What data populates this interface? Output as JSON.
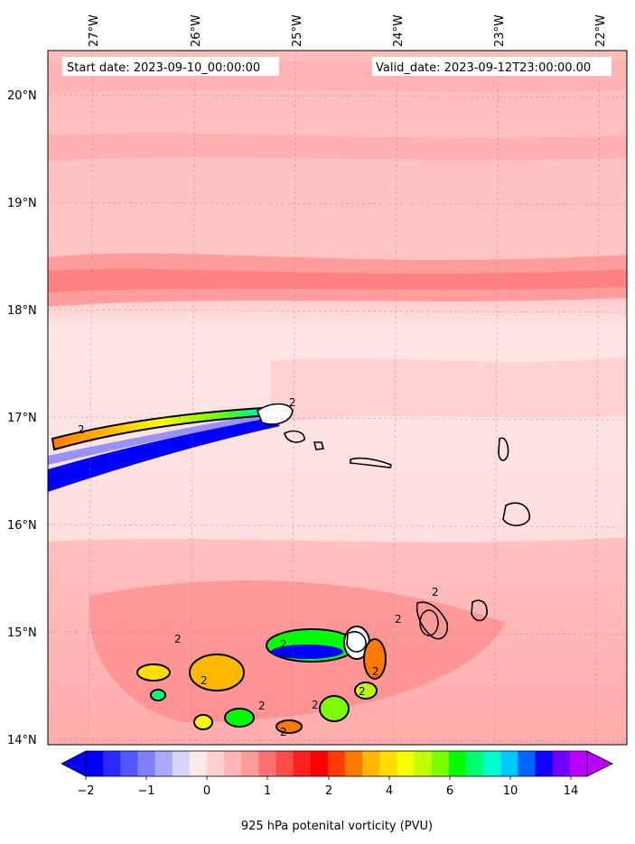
{
  "header": {
    "start_date": "Start date: 2023-09-10_00:00:00",
    "valid_date": "Valid_date: 2023-09-12T23:00:00.00"
  },
  "axes": {
    "lon_ticks": [
      "27°W",
      "26°W",
      "25°W",
      "24°W",
      "23°W",
      "22°W"
    ],
    "lat_ticks": [
      "20°N",
      "19°N",
      "18°N",
      "17°N",
      "16°N",
      "15°N",
      "14°N"
    ]
  },
  "colorbar": {
    "label": "925 hPa potenital vorticity (PVU)",
    "tick_labels": [
      "−2",
      "−1",
      "0",
      "1",
      "2",
      "4",
      "6",
      "10",
      "14"
    ],
    "colors": [
      "#0000ff",
      "#2a2aff",
      "#5555ff",
      "#7f7fff",
      "#a9a9ff",
      "#d4d4ff",
      "#ffe8e8",
      "#ffd0d0",
      "#ffb5b5",
      "#ff9a9a",
      "#ff7070",
      "#ff4a4a",
      "#ff2020",
      "#ff0000",
      "#ff3d00",
      "#ff7b00",
      "#ffb800",
      "#ffdd00",
      "#f5ff00",
      "#c0ff00",
      "#7bff00",
      "#00ff00",
      "#00ff70",
      "#00ffd0",
      "#00c8ff",
      "#0064ff",
      "#1400ff",
      "#7000ff",
      "#bb00ff"
    ]
  },
  "contour_labels": [
    "2",
    "2",
    "2",
    "2",
    "2",
    "2",
    "2",
    "2",
    "2",
    "2",
    "2",
    "2"
  ],
  "colors": {
    "background_field": "#ffd2d2",
    "light_field": "#ffe8e8",
    "band_field": "#ff9c9c",
    "negative_field": "#0000ff",
    "land_outline": "#000000"
  }
}
